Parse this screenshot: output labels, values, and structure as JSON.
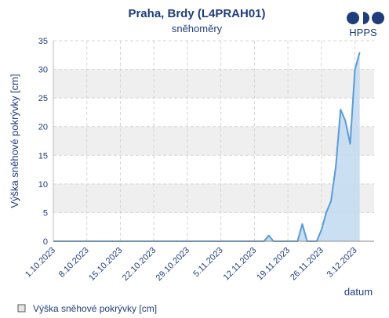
{
  "colors": {
    "text": "#1f3d7a",
    "series_line": "#5b9bd5",
    "series_fill": "#c5dcf2",
    "band": "#efefef",
    "grid": "#d5d5d5",
    "logo": "#1f3d7a"
  },
  "logo": {
    "label": "HPPS",
    "icon": "hpps-logo-icon"
  },
  "chart_data": {
    "type": "area",
    "title": "Praha, Brdy (L4PRAH01)",
    "subtitle": "sněhoměry",
    "ylabel": "Výška sněhové pokrývky [cm]",
    "xlabel": "datum",
    "ylim": [
      0,
      35
    ],
    "yticks": [
      0,
      5,
      10,
      15,
      20,
      25,
      30,
      35
    ],
    "xlim": [
      "2023-10-01",
      "2023-12-07"
    ],
    "xtick_labels": [
      {
        "date": "2023-10-01",
        "label": "1.10.2023"
      },
      {
        "date": "2023-10-08",
        "label": "8.10.2023"
      },
      {
        "date": "2023-10-15",
        "label": "15.10.2023"
      },
      {
        "date": "2023-10-22",
        "label": "22.10.2023"
      },
      {
        "date": "2023-10-29",
        "label": "29.10.2023"
      },
      {
        "date": "2023-11-05",
        "label": "5.11.2023"
      },
      {
        "date": "2023-11-12",
        "label": "12.11.2023"
      },
      {
        "date": "2023-11-19",
        "label": "19.11.2023"
      },
      {
        "date": "2023-11-26",
        "label": "26.11.2023"
      },
      {
        "date": "2023-12-03",
        "label": "3.12.2023"
      }
    ],
    "grid": true,
    "legend_position": "bottom-left",
    "series": [
      {
        "name": "Výška sněhové pokrývky [cm]",
        "points": [
          [
            "2023-10-01",
            0
          ],
          [
            "2023-11-14",
            0
          ],
          [
            "2023-11-15",
            1
          ],
          [
            "2023-11-16",
            0
          ],
          [
            "2023-11-21",
            0
          ],
          [
            "2023-11-22",
            3
          ],
          [
            "2023-11-23",
            0
          ],
          [
            "2023-11-25",
            0
          ],
          [
            "2023-11-26",
            2
          ],
          [
            "2023-11-27",
            5
          ],
          [
            "2023-11-28",
            7
          ],
          [
            "2023-11-29",
            13
          ],
          [
            "2023-11-30",
            23
          ],
          [
            "2023-12-01",
            21
          ],
          [
            "2023-12-02",
            17
          ],
          [
            "2023-12-03",
            30
          ],
          [
            "2023-12-04",
            33
          ]
        ]
      }
    ]
  }
}
